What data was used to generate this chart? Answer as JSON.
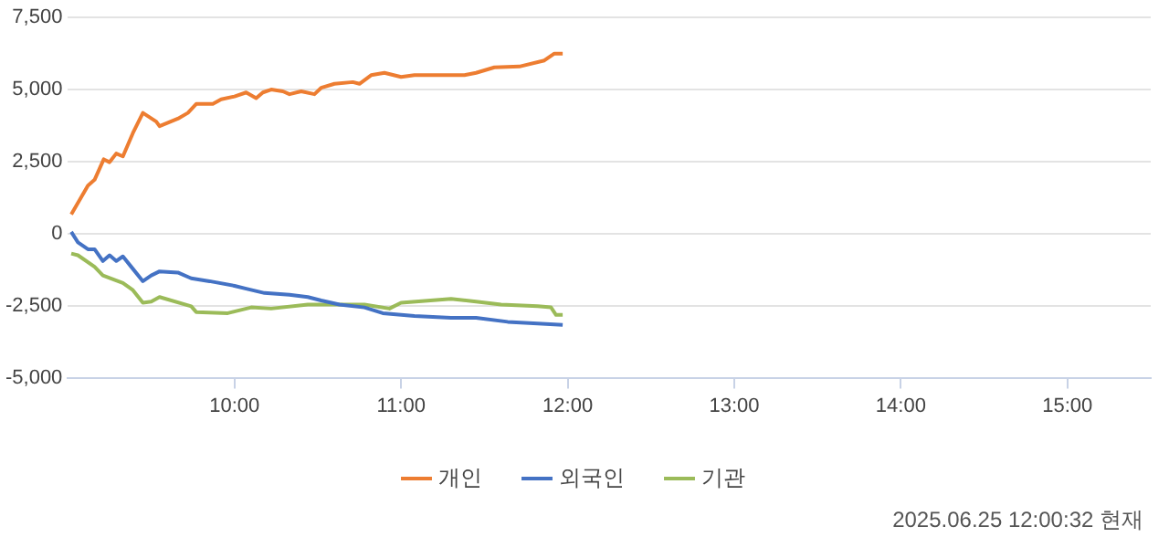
{
  "chart_data": {
    "type": "line",
    "x": [
      9.02,
      9.12,
      9.16,
      9.215,
      9.25,
      9.29,
      9.33,
      9.39,
      9.45,
      9.53,
      9.55,
      9.66,
      9.72,
      9.77,
      9.87,
      9.92,
      10.0,
      10.07,
      10.13,
      10.17,
      10.22,
      10.29,
      10.33,
      10.4,
      10.48,
      10.52,
      10.6,
      10.71,
      10.75,
      10.82,
      10.9,
      11.0,
      11.08,
      11.38,
      11.45,
      11.56,
      11.71,
      11.86,
      11.92,
      11.97
    ],
    "series": [
      {
        "name": "개인",
        "color": "#ed7d31",
        "values": [
          670,
          1670,
          1870,
          2580,
          2480,
          2780,
          2680,
          3490,
          4190,
          3890,
          3730,
          3990,
          4190,
          4500,
          4500,
          4660,
          4760,
          4900,
          4700,
          4900,
          5000,
          4940,
          4840,
          4940,
          4840,
          5060,
          5200,
          5260,
          5200,
          5500,
          5580,
          5440,
          5500,
          5500,
          5580,
          5770,
          5800,
          6010,
          6250,
          6250
        ]
      },
      {
        "name": "외국인",
        "color": "#4472c4",
        "x": [
          9.02,
          9.06,
          9.12,
          9.16,
          9.21,
          9.25,
          9.29,
          9.33,
          9.38,
          9.45,
          9.5,
          9.55,
          9.66,
          9.74,
          9.85,
          10.0,
          10.07,
          10.18,
          10.33,
          10.44,
          10.52,
          10.63,
          10.78,
          10.89,
          11.08,
          11.3,
          11.45,
          11.64,
          11.82,
          11.97
        ],
        "values": [
          60,
          -300,
          -540,
          -540,
          -950,
          -750,
          -950,
          -790,
          -1150,
          -1650,
          -1450,
          -1310,
          -1350,
          -1550,
          -1650,
          -1810,
          -1910,
          -2060,
          -2120,
          -2200,
          -2320,
          -2460,
          -2560,
          -2760,
          -2860,
          -2920,
          -2920,
          -3060,
          -3120,
          -3170
        ]
      },
      {
        "name": "기관",
        "color": "#9bbb59",
        "x": [
          9.02,
          9.06,
          9.16,
          9.21,
          9.33,
          9.39,
          9.45,
          9.5,
          9.55,
          9.74,
          9.77,
          9.96,
          10.1,
          10.22,
          10.44,
          10.63,
          10.78,
          10.93,
          11.0,
          11.3,
          11.45,
          11.6,
          11.82,
          11.9,
          11.93,
          11.97
        ],
        "values": [
          -690,
          -750,
          -1150,
          -1450,
          -1710,
          -1960,
          -2400,
          -2360,
          -2200,
          -2520,
          -2720,
          -2760,
          -2560,
          -2600,
          -2460,
          -2460,
          -2460,
          -2600,
          -2400,
          -2260,
          -2360,
          -2460,
          -2520,
          -2560,
          -2820,
          -2820
        ]
      }
    ],
    "xlim": [
      9,
      15.5
    ],
    "xticks": [
      {
        "value": 10,
        "label": "10:00"
      },
      {
        "value": 11,
        "label": "11:00"
      },
      {
        "value": 12,
        "label": "12:00"
      },
      {
        "value": 13,
        "label": "13:00"
      },
      {
        "value": 14,
        "label": "14:00"
      },
      {
        "value": 15,
        "label": "15:00"
      }
    ],
    "ylim": [
      -5000,
      7500
    ],
    "yticks": [
      {
        "value": -5000,
        "label": "-5,000"
      },
      {
        "value": -2500,
        "label": "-2,500"
      },
      {
        "value": 0,
        "label": "0"
      },
      {
        "value": 2500,
        "label": "2,500"
      },
      {
        "value": 5000,
        "label": "5,000"
      },
      {
        "value": 7500,
        "label": "7,500"
      }
    ],
    "grid": "y",
    "legend": "bottom",
    "marker": "none",
    "line_style": "solid",
    "annotations": [
      "2025.06.25 12:00:32 현재"
    ]
  }
}
